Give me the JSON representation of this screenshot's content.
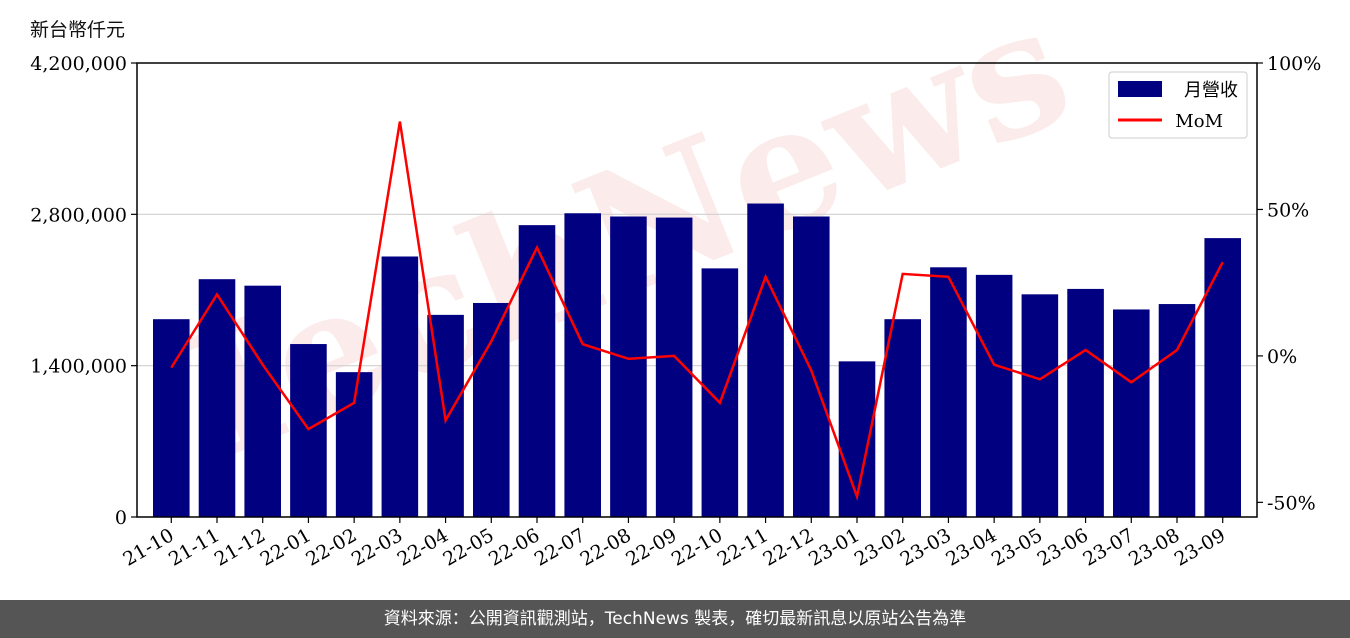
{
  "unit_label": "新台幣仟元",
  "footer_text": "資料來源：公開資訊觀測站，TechNews 製表，確切最新訊息以原站公告為準",
  "watermark": "TechNews",
  "colors": {
    "bar": "#000080",
    "line": "#ff0000",
    "footer_bg": "#555555",
    "grid": "#d0d0d0"
  },
  "chart_data": {
    "type": "bar",
    "categories": [
      "21-10",
      "21-11",
      "21-12",
      "22-01",
      "22-02",
      "22-03",
      "22-04",
      "22-05",
      "22-06",
      "22-07",
      "22-08",
      "22-09",
      "22-10",
      "22-11",
      "22-12",
      "23-01",
      "23-02",
      "23-03",
      "23-04",
      "23-05",
      "23-06",
      "23-07",
      "23-08",
      "23-09"
    ],
    "series": [
      {
        "name": "月營收",
        "type": "bar",
        "axis": "left",
        "values": [
          1830000,
          2200000,
          2140000,
          1600000,
          1340000,
          2410000,
          1870000,
          1980000,
          2700000,
          2810000,
          2780000,
          2770000,
          2300000,
          2900000,
          2780000,
          1440000,
          1830000,
          2310000,
          2240000,
          2060000,
          2110000,
          1920000,
          1970000,
          2580000
        ]
      },
      {
        "name": "MoM",
        "type": "line",
        "axis": "right",
        "values": [
          -4,
          21,
          -3,
          -25,
          -16,
          80,
          -22,
          5,
          37,
          4,
          -1,
          0,
          -16,
          27,
          -5,
          -48,
          28,
          27,
          -3,
          -8,
          2,
          -9,
          2,
          32
        ]
      }
    ],
    "left_axis": {
      "ylim": [
        0,
        4200000
      ],
      "ticks": [
        0,
        1400000,
        2800000,
        4200000
      ],
      "tick_labels": [
        "0",
        "1,400,000",
        "2,800,000",
        "4,200,000"
      ]
    },
    "right_axis": {
      "ylim": [
        -55,
        100
      ],
      "ticks": [
        -50,
        0,
        50,
        100
      ],
      "tick_labels": [
        "-50%",
        "0%",
        "50%",
        "100%"
      ]
    },
    "grid": true,
    "legend_position": "top-right"
  }
}
